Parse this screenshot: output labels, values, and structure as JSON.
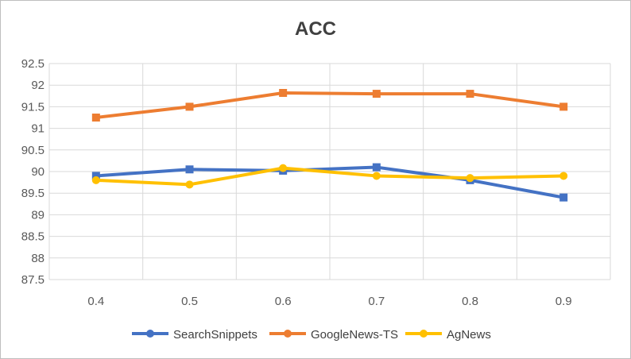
{
  "chart_data": {
    "type": "line",
    "title": "ACC",
    "xlabel": "",
    "ylabel": "",
    "categories": [
      "0.4",
      "0.5",
      "0.6",
      "0.7",
      "0.8",
      "0.9"
    ],
    "ylim": [
      87.5,
      92.5
    ],
    "y_ticks": [
      "87.5",
      "88",
      "88.5",
      "89",
      "89.5",
      "90",
      "90.5",
      "91",
      "91.5",
      "92",
      "92.5"
    ],
    "grid": true,
    "legend_position": "bottom",
    "series": [
      {
        "name": "SearchSnippets",
        "color": "#4472c4",
        "marker": "square",
        "values": [
          89.9,
          90.05,
          90.02,
          90.1,
          89.8,
          89.4
        ]
      },
      {
        "name": "GoogleNews-TS",
        "color": "#ed7d31",
        "marker": "square",
        "values": [
          91.25,
          91.5,
          91.82,
          91.8,
          91.8,
          91.5
        ]
      },
      {
        "name": "AgNews",
        "color": "#ffc000",
        "marker": "circle",
        "values": [
          89.8,
          89.7,
          90.08,
          89.9,
          89.85,
          89.9
        ]
      }
    ]
  }
}
